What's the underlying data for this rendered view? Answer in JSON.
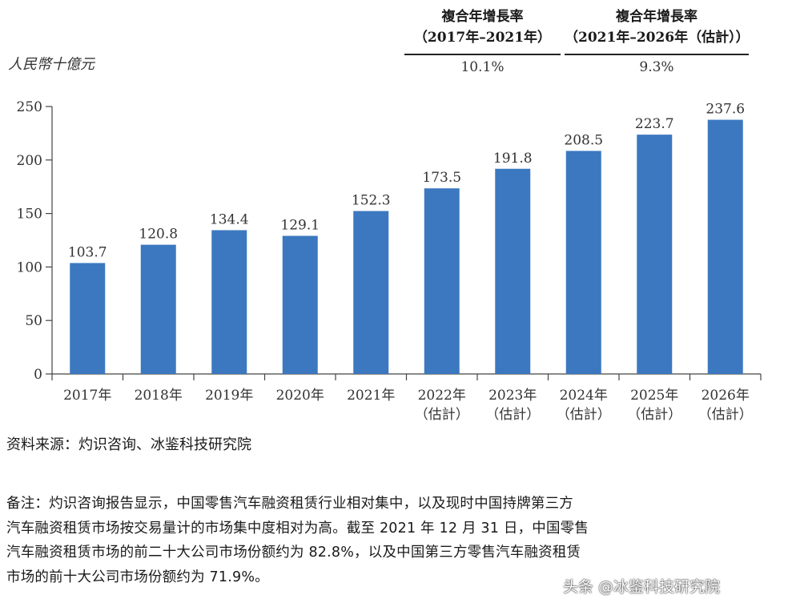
{
  "cagr_table": {
    "col1_header_line1": "複合年增長率",
    "col1_header_line2": "（2017年–2021年）",
    "col1_value": "10.1%",
    "col2_header_line1": "複合年增長率",
    "col2_header_line2": "（2021年–2026年（估計））",
    "col2_value": "9.3%"
  },
  "unit_label": "人民幣十億元",
  "chart_data": {
    "type": "bar",
    "title": "",
    "xlabel": "",
    "ylabel": "人民幣十億元",
    "ylim": [
      0,
      250
    ],
    "yticks": [
      0,
      50,
      100,
      150,
      200,
      250
    ],
    "grid": false,
    "categories": [
      [
        "2017年"
      ],
      [
        "2018年"
      ],
      [
        "2019年"
      ],
      [
        "2020年"
      ],
      [
        "2021年"
      ],
      [
        "2022年",
        "（估計）"
      ],
      [
        "2023年",
        "（估計）"
      ],
      [
        "2024年",
        "（估計）"
      ],
      [
        "2025年",
        "（估計）"
      ],
      [
        "2026年",
        "（估計）"
      ]
    ],
    "values": [
      103.7,
      120.8,
      134.4,
      129.1,
      152.3,
      173.5,
      191.8,
      208.5,
      223.7,
      237.6
    ],
    "value_labels": [
      "103.7",
      "120.8",
      "134.4",
      "129.1",
      "152.3",
      "173.5",
      "191.8",
      "208.5",
      "223.7",
      "237.6"
    ],
    "bar_color": "#3c78c0"
  },
  "source": "资料来源：灼识咨询、冰鉴科技研究院",
  "note_lines": [
    "备注：灼识咨询报告显示，中国零售汽车融资租赁行业相对集中，以及现时中国持牌第三方",
    "汽车融资租赁市场按交易量计的市场集中度相对为高。截至 2021 年 12 月 31 日，中国零售",
    "汽车融资租赁市场的前二十大公司市场份额约为 82.8%，以及中国第三方零售汽车融资租赁",
    "市场的前十大公司市场份额约为 71.9%。"
  ],
  "watermark": "头条 @冰鉴科技研究院"
}
